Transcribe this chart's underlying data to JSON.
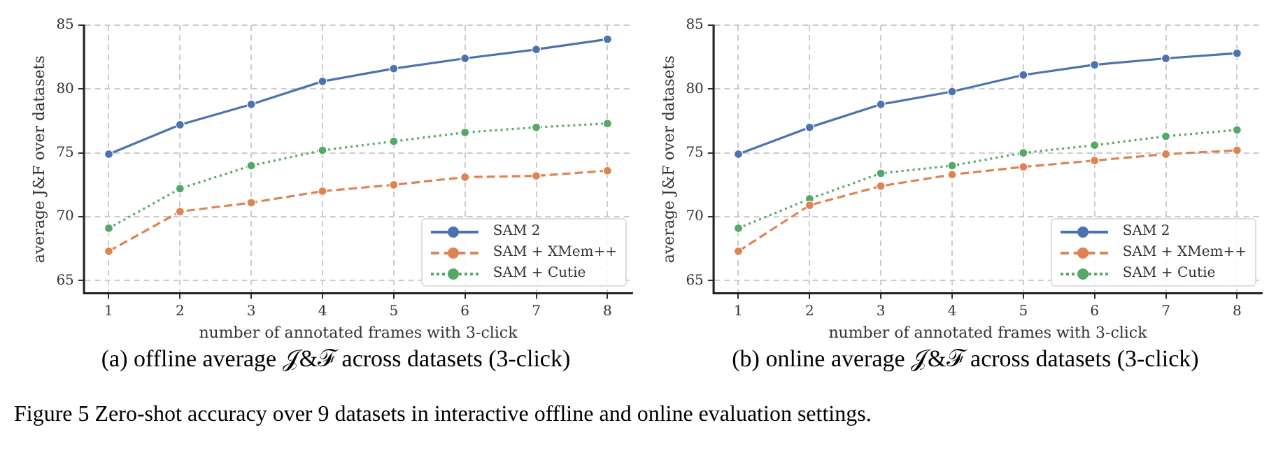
{
  "chart_data": [
    {
      "type": "line",
      "title": "(a) offline average 𝒥&ℱ across datasets (3-click)",
      "xlabel": "number of annotated frames with 3-click",
      "ylabel": "average J&F over datasets",
      "x": [
        1,
        2,
        3,
        4,
        5,
        6,
        7,
        8
      ],
      "xlim": [
        0.65,
        8.35
      ],
      "xticks": [
        1,
        2,
        3,
        4,
        5,
        6,
        7,
        8
      ],
      "ylim": [
        64,
        85
      ],
      "yticks": [
        65,
        70,
        75,
        80,
        85
      ],
      "grid": true,
      "legend": "bottom right",
      "marker": "circle",
      "series": [
        {
          "name": "SAM 2",
          "color": "#4c72b0",
          "line_style": "solid",
          "values": [
            74.9,
            77.2,
            78.8,
            80.6,
            81.6,
            82.4,
            83.1,
            83.9
          ]
        },
        {
          "name": "SAM + XMem++",
          "color": "#dd8452",
          "line_style": "dashed",
          "values": [
            67.3,
            70.4,
            71.1,
            72.0,
            72.5,
            73.1,
            73.2,
            73.6
          ]
        },
        {
          "name": "SAM + Cutie",
          "color": "#55a868",
          "line_style": "dotted",
          "values": [
            69.1,
            72.2,
            74.0,
            75.2,
            75.9,
            76.6,
            77.0,
            77.3
          ]
        }
      ],
      "annotations": [
        "Figure 5  Zero-shot accuracy over 9 datasets in interactive offline and online evaluation settings."
      ]
    },
    {
      "type": "line",
      "title": "(b) online average 𝒥&ℱ across datasets (3-click)",
      "xlabel": "number of annotated frames with 3-click",
      "ylabel": "average J&F over datasets",
      "x": [
        1,
        2,
        3,
        4,
        5,
        6,
        7,
        8
      ],
      "xlim": [
        0.65,
        8.35
      ],
      "xticks": [
        1,
        2,
        3,
        4,
        5,
        6,
        7,
        8
      ],
      "ylim": [
        64,
        85
      ],
      "yticks": [
        65,
        70,
        75,
        80,
        85
      ],
      "grid": true,
      "legend": "bottom right",
      "marker": "circle",
      "series": [
        {
          "name": "SAM 2",
          "color": "#4c72b0",
          "line_style": "solid",
          "values": [
            74.9,
            77.0,
            78.8,
            79.8,
            81.1,
            81.9,
            82.4,
            82.8
          ]
        },
        {
          "name": "SAM + XMem++",
          "color": "#dd8452",
          "line_style": "dashed",
          "values": [
            67.3,
            70.9,
            72.4,
            73.3,
            73.9,
            74.4,
            74.9,
            75.2
          ]
        },
        {
          "name": "SAM + Cutie",
          "color": "#55a868",
          "line_style": "dotted",
          "values": [
            69.1,
            71.4,
            73.4,
            74.0,
            75.0,
            75.6,
            76.3,
            76.8
          ]
        }
      ]
    }
  ]
}
